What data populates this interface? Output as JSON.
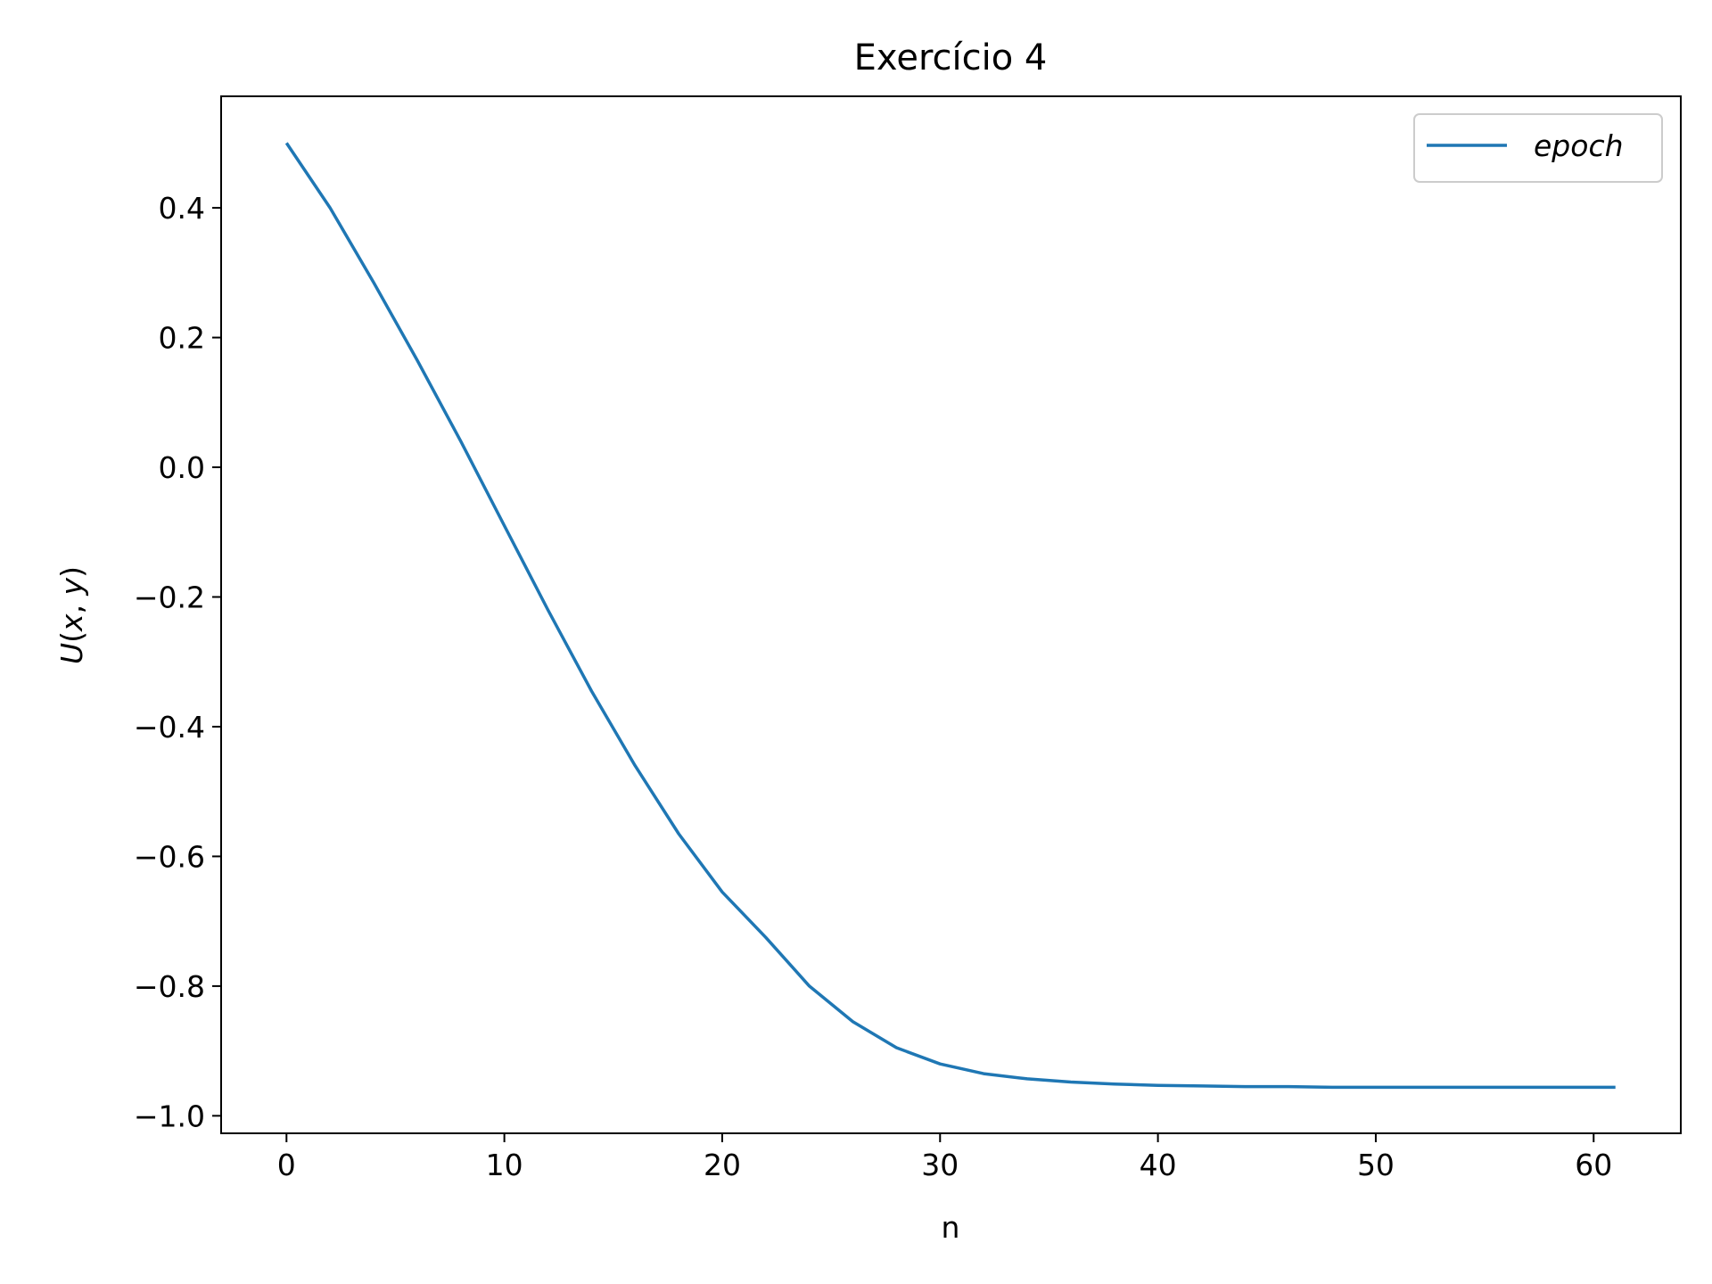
{
  "chart_data": {
    "type": "line",
    "title": "Exercício 4",
    "xlabel": "n",
    "ylabel_parts": {
      "f": "U",
      "open": "(",
      "x": "x",
      "comma": ", ",
      "y": "y",
      "close": ")"
    },
    "xlim": [
      -3,
      64
    ],
    "ylim": [
      -1.027,
      0.572
    ],
    "xticks": [
      0,
      10,
      20,
      30,
      40,
      50,
      60
    ],
    "xtick_labels": [
      "0",
      "10",
      "20",
      "30",
      "40",
      "50",
      "60"
    ],
    "yticks": [
      0.4,
      0.2,
      0.0,
      -0.2,
      -0.4,
      -0.6,
      -0.8,
      -1.0
    ],
    "ytick_labels": [
      "0.4",
      "0.2",
      "0.0",
      "−0.2",
      "−0.4",
      "−0.6",
      "−0.8",
      "−1.0"
    ],
    "grid": false,
    "legend_position": "top-right",
    "series": [
      {
        "name": "epoch",
        "color": "#1f77b4",
        "x": [
          0,
          2,
          4,
          6,
          8,
          10,
          12,
          14,
          16,
          18,
          20,
          22,
          24,
          26,
          28,
          30,
          32,
          34,
          36,
          38,
          40,
          42,
          44,
          46,
          48,
          50,
          52,
          54,
          56,
          58,
          61
        ],
        "y": [
          0.5,
          0.4,
          0.285,
          0.165,
          0.04,
          -0.09,
          -0.22,
          -0.345,
          -0.46,
          -0.565,
          -0.655,
          -0.725,
          -0.8,
          -0.855,
          -0.895,
          -0.92,
          -0.935,
          -0.943,
          -0.948,
          -0.951,
          -0.953,
          -0.954,
          -0.955,
          -0.955,
          -0.956,
          -0.956,
          -0.956,
          -0.956,
          -0.956,
          -0.956,
          -0.956
        ]
      }
    ]
  }
}
